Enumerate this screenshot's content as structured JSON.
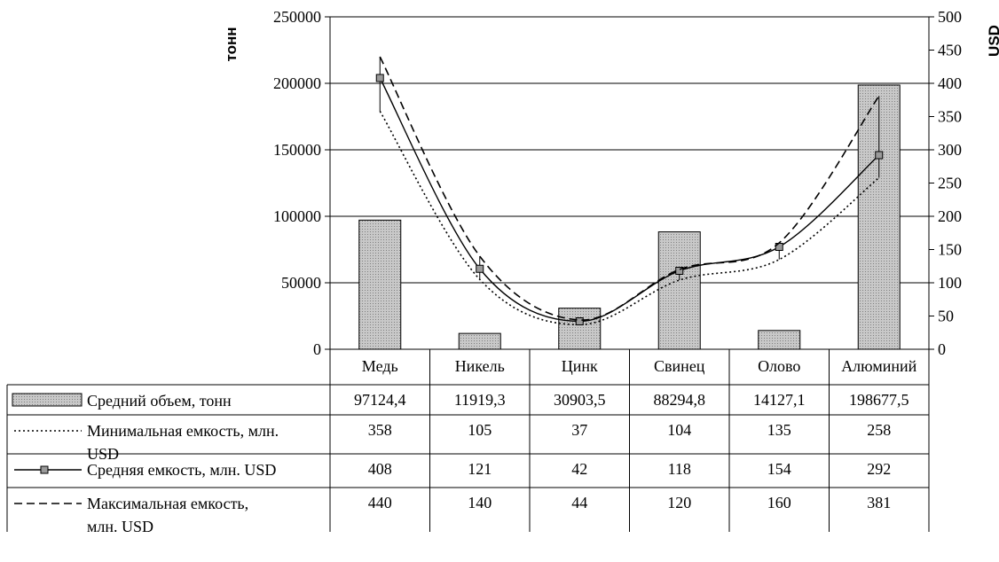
{
  "chart_data": {
    "type": "bar+line",
    "categories": [
      "Медь",
      "Никель",
      "Цинк",
      "Свинец",
      "Олово",
      "Алюминий"
    ],
    "left_axis": {
      "label": "тонн",
      "ylim": [
        0,
        250000
      ],
      "ticks": [
        0,
        50000,
        100000,
        150000,
        200000,
        250000
      ]
    },
    "right_axis": {
      "label": "USD",
      "ylim": [
        0,
        500
      ],
      "ticks": [
        0,
        50,
        100,
        150,
        200,
        250,
        300,
        350,
        400,
        450,
        500
      ]
    },
    "grid": "horizontal",
    "series": [
      {
        "name": "Средний объем, тонн",
        "kind": "bar",
        "axis": "left",
        "color": "#b8b8b8",
        "values": [
          97124.4,
          11919.3,
          30903.5,
          88294.8,
          14127.1,
          198677.5
        ],
        "labels": [
          "97124,4",
          "11919,3",
          "30903,5",
          "88294,8",
          "14127,1",
          "198677,5"
        ]
      },
      {
        "name": "Минимальная емкость, млн. USD",
        "kind": "line",
        "style": "dotted",
        "axis": "right",
        "values": [
          358,
          105,
          37,
          104,
          135,
          258
        ],
        "labels": [
          "358",
          "105",
          "37",
          "104",
          "135",
          "258"
        ]
      },
      {
        "name": "Средняя емкость, млн. USD",
        "kind": "line",
        "style": "solid-marker",
        "axis": "right",
        "values": [
          408,
          121,
          42,
          118,
          154,
          292
        ],
        "labels": [
          "408",
          "121",
          "42",
          "118",
          "154",
          "292"
        ]
      },
      {
        "name": "Максимальная емкость, млн. USD",
        "kind": "line",
        "style": "dashed",
        "axis": "right",
        "values": [
          440,
          140,
          44,
          120,
          160,
          381
        ],
        "labels": [
          "440",
          "140",
          "44",
          "120",
          "160",
          "381"
        ]
      }
    ],
    "row_label_lines": [
      [
        "Средний объем, тонн"
      ],
      [
        "Минимальная емкость, млн.",
        "USD"
      ],
      [
        "Средняя емкость, млн. USD"
      ],
      [
        "Максимальная емкость,",
        "млн. USD"
      ]
    ]
  }
}
